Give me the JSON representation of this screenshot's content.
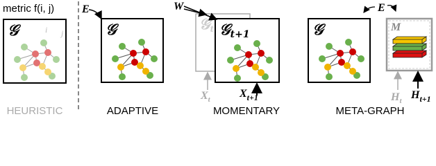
{
  "panels": [
    {
      "caption": "HEURISTIC",
      "metric": "metric f(i, j)",
      "graph": "𝒢",
      "node_i": "i",
      "node_j": "j"
    },
    {
      "caption": "ADAPTIVE",
      "input": "E",
      "graph": "𝒢"
    },
    {
      "caption": "MOMENTARY",
      "input": "W",
      "graph_prev": "𝒢",
      "graph_prev_sub": "t",
      "graph": "𝒢",
      "graph_sub": "t+1",
      "x_prev": "X",
      "x_prev_sub": "t",
      "x": "X",
      "x_sub": "t+1"
    },
    {
      "caption": "META-GRAPH",
      "input": "E",
      "graph": "𝒢",
      "memory": "M",
      "h_prev": "H",
      "h_prev_sub": "t",
      "h": "H",
      "h_sub": "t+1"
    }
  ]
}
